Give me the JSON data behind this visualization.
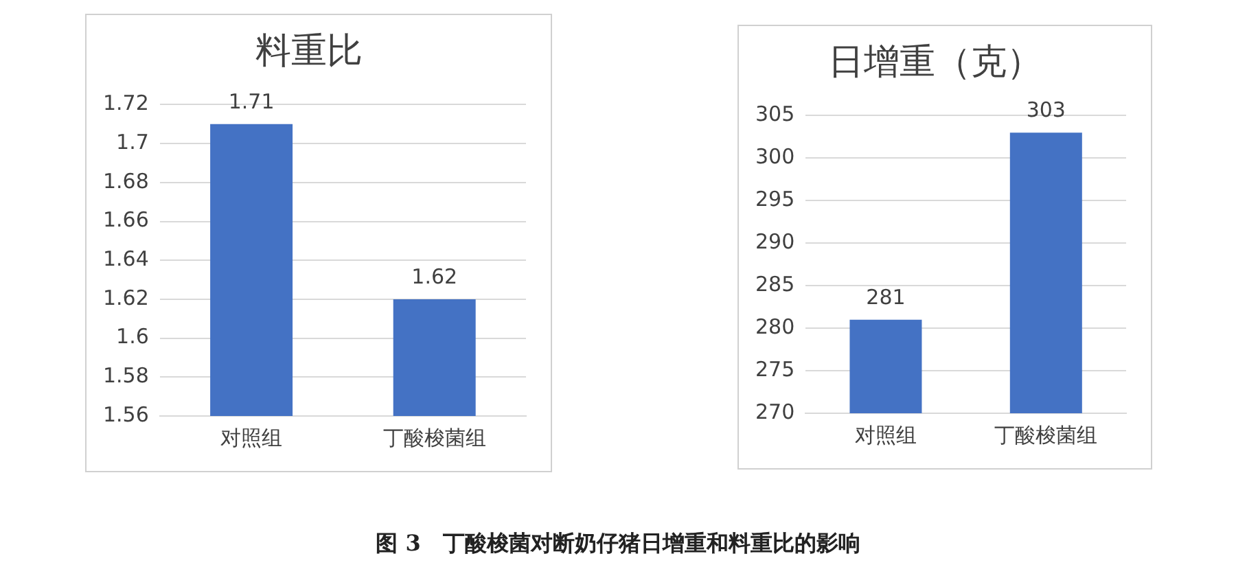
{
  "chart_data": [
    {
      "type": "bar",
      "title": "料重比",
      "categories": [
        "对照组",
        "丁酸梭菌组"
      ],
      "values": [
        1.71,
        1.62
      ],
      "color": "#4472c4",
      "ylim": [
        1.56,
        1.72
      ],
      "yticks": [
        1.56,
        1.58,
        1.6,
        1.62,
        1.64,
        1.66,
        1.68,
        1.7,
        1.72
      ],
      "grid": "y",
      "data_labels": true,
      "annotations": [
        "图 3　丁酸梭菌对断奶仔猪日增重和料重比的影响"
      ]
    },
    {
      "type": "bar",
      "title": "日增重（克）",
      "categories": [
        "对照组",
        "丁酸梭菌组"
      ],
      "values": [
        281,
        303
      ],
      "color": "#4472c4",
      "ylim": [
        270,
        305
      ],
      "yticks": [
        270,
        275,
        280,
        285,
        290,
        295,
        300,
        305
      ],
      "grid": "y",
      "data_labels": true
    }
  ]
}
